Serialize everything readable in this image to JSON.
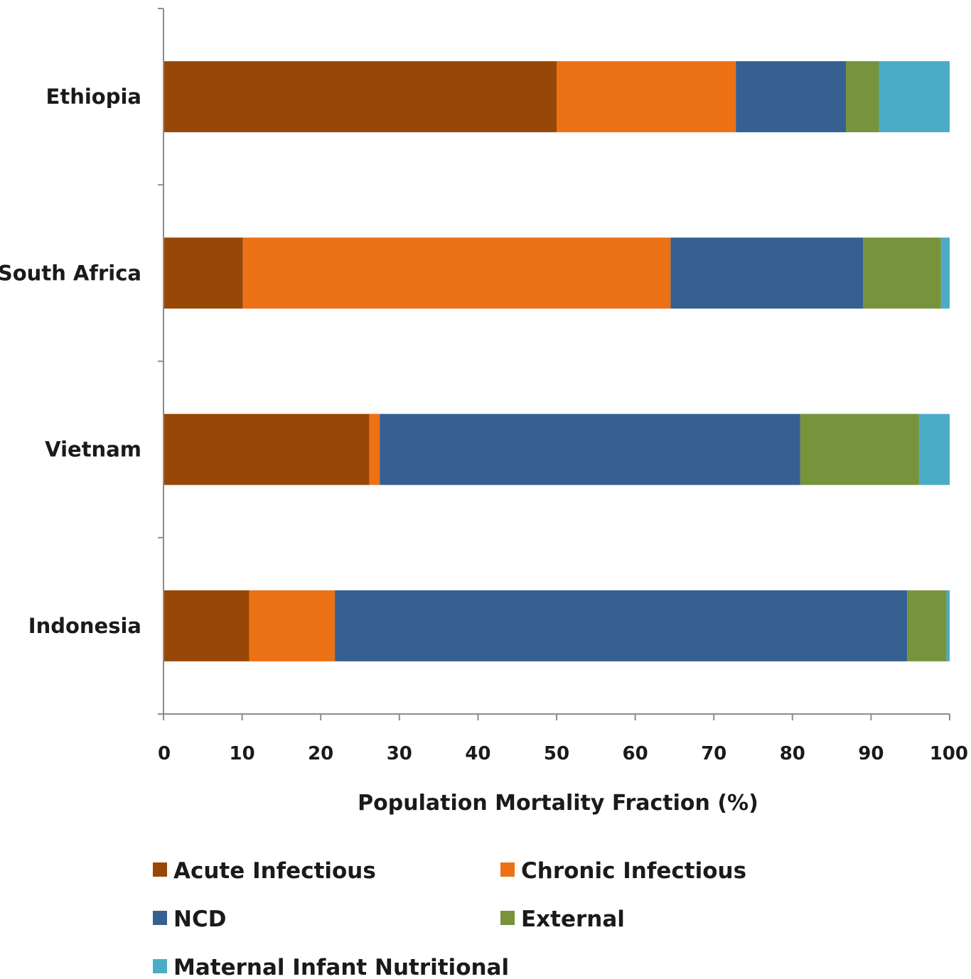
{
  "chart_data": {
    "type": "bar",
    "orientation": "horizontal",
    "stacked": true,
    "categories": [
      "Ethiopia",
      "South Africa",
      "Vietnam",
      "Indonesia"
    ],
    "series": [
      {
        "name": "Acute Infectious",
        "color": "#974806",
        "values": [
          50.0,
          10.1,
          26.2,
          10.9
        ]
      },
      {
        "name": "Chronic Infectious",
        "color": "#ED7115",
        "values": [
          22.8,
          54.4,
          1.3,
          10.9
        ]
      },
      {
        "name": "NCD",
        "color": "#366092",
        "values": [
          14.0,
          24.5,
          53.5,
          72.8
        ]
      },
      {
        "name": "External",
        "color": "#77933C",
        "values": [
          4.2,
          9.9,
          15.1,
          5.0
        ]
      },
      {
        "name": "Maternal Infant Nutritional",
        "color": "#4BACC6",
        "values": [
          9.0,
          1.3,
          3.9,
          0.6
        ]
      }
    ],
    "xlabel": "Population Mortality Fraction (%)",
    "ylabel": "",
    "xlim": [
      0,
      100
    ],
    "xticks": [
      "0",
      "10",
      "20",
      "30",
      "40",
      "50",
      "60",
      "70",
      "80",
      "90",
      "100"
    ],
    "grid": false,
    "legend_position": "bottom"
  }
}
